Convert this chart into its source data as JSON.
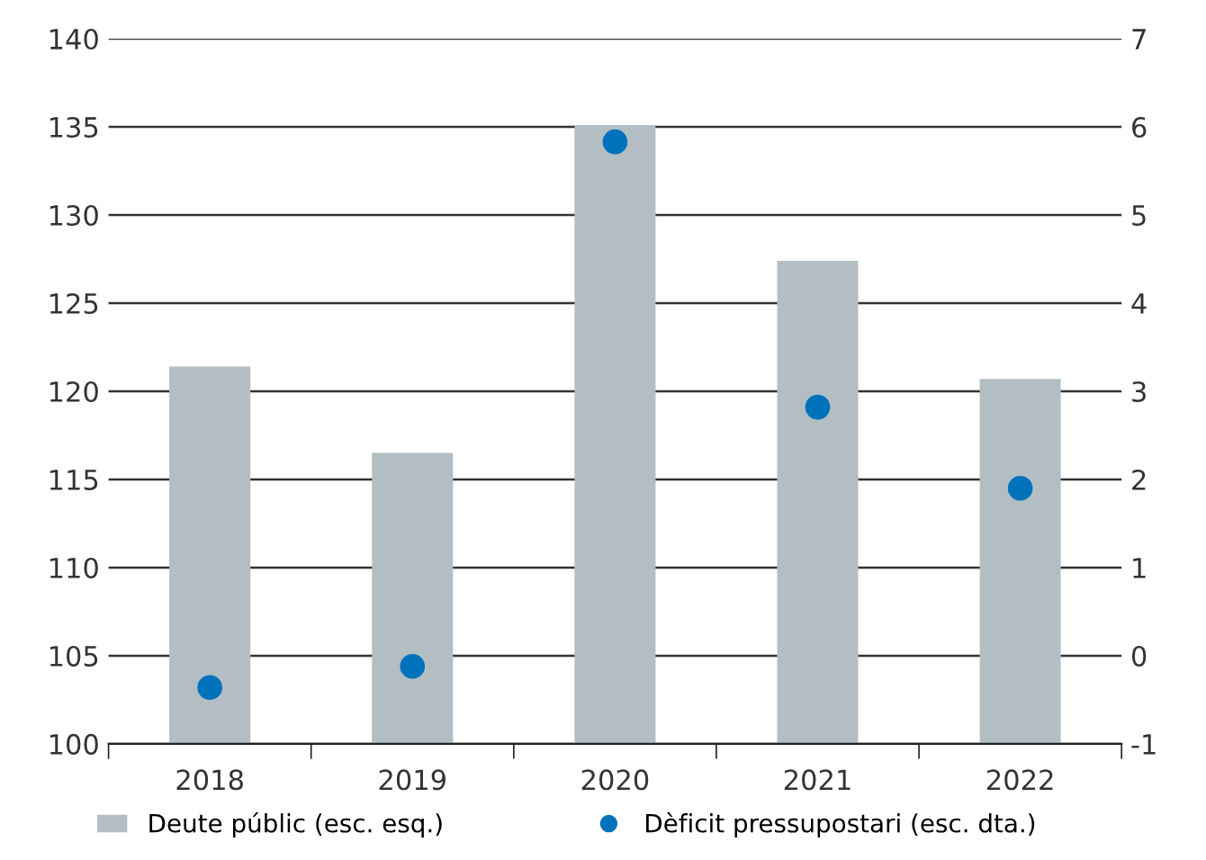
{
  "chart_data": {
    "type": "bar",
    "categories": [
      "2018",
      "2019",
      "2020",
      "2021",
      "2022"
    ],
    "series": [
      {
        "name": "Deute públic (esc. esq.)",
        "color": "#b2bec3",
        "values": [
          121.4,
          116.5,
          135.1,
          127.4,
          120.7
        ]
      },
      {
        "name": "Dèficit pressupostari (esc. dta.)",
        "type": "scatter",
        "axis": "y2",
        "color": "#0072bc",
        "marker": "circle",
        "values": [
          -0.36,
          -0.12,
          5.83,
          2.82,
          1.9
        ]
      }
    ],
    "ylim": [
      100,
      140
    ],
    "yticks": [
      100,
      105,
      110,
      115,
      120,
      125,
      130,
      135,
      140
    ],
    "y2lim": [
      -1,
      7
    ],
    "y2ticks": [
      -1,
      0,
      1,
      2,
      3,
      4,
      5,
      6,
      7
    ],
    "grid": "y",
    "legend": "bottom"
  }
}
